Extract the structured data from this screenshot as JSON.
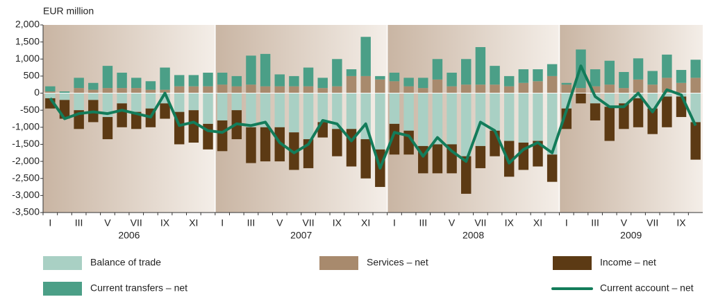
{
  "chart_data": {
    "type": "bar",
    "y_axis_label": "EUR million",
    "categories": [
      "I",
      null,
      "III",
      null,
      "V",
      null,
      "VII",
      null,
      "IX",
      null,
      "XI",
      null,
      "I",
      null,
      "III",
      null,
      "V",
      null,
      "VII",
      null,
      "IX",
      null,
      "XI",
      null,
      "I",
      null,
      "III",
      null,
      "V",
      null,
      "VII",
      null,
      "IX",
      null,
      "XI",
      null,
      "I",
      null,
      "III",
      null,
      "V",
      null,
      "VII",
      null,
      "IX",
      null
    ],
    "years": [
      "2006",
      "2007",
      "2008",
      "2009"
    ],
    "ylim": [
      -3500,
      2000
    ],
    "yticks": [
      {
        "value": 2000,
        "label": "2,000"
      },
      {
        "value": 1500,
        "label": "1,500"
      },
      {
        "value": 1000,
        "label": "1,000"
      },
      500,
      0,
      -500,
      {
        "value": -1000,
        "label": "-1,000"
      },
      {
        "value": -1500,
        "label": "-1,500"
      },
      {
        "value": -2000,
        "label": "-2,000"
      },
      {
        "value": -2500,
        "label": "-2,500"
      },
      {
        "value": -3000,
        "label": "-3,000"
      },
      {
        "value": -3500,
        "label": "-3,500"
      }
    ],
    "series": [
      {
        "name": "Balance of trade",
        "color": "#a9d0c4",
        "values": [
          -150,
          -200,
          -500,
          -200,
          -700,
          -300,
          -550,
          -450,
          -300,
          -550,
          -500,
          -900,
          -800,
          -500,
          -1000,
          -1000,
          -1000,
          -1150,
          -1350,
          -850,
          -1050,
          -1050,
          -1350,
          -1650,
          -900,
          -1100,
          -1550,
          -1500,
          -1500,
          -1850,
          -1550,
          -1100,
          -1400,
          -1450,
          -1400,
          -1800,
          -450,
          0,
          -300,
          -400,
          -300,
          -150,
          -450,
          -100,
          -100,
          -850
        ]
      },
      {
        "name": "Services – net",
        "color": "#a88a6d",
        "values": [
          50,
          0,
          150,
          100,
          150,
          150,
          150,
          100,
          100,
          200,
          200,
          200,
          250,
          200,
          250,
          200,
          200,
          200,
          200,
          150,
          200,
          500,
          500,
          400,
          350,
          200,
          150,
          400,
          200,
          250,
          250,
          250,
          200,
          300,
          350,
          500,
          250,
          150,
          200,
          250,
          150,
          400,
          250,
          450,
          300,
          450
        ]
      },
      {
        "name": "Income – net",
        "color": "#5c3a14",
        "values": [
          -300,
          -550,
          -550,
          -650,
          -650,
          -700,
          -500,
          -550,
          -450,
          -950,
          -950,
          -750,
          -900,
          -850,
          -1050,
          -1000,
          -1000,
          -1100,
          -850,
          -450,
          -800,
          -1100,
          -1150,
          -1100,
          -900,
          -700,
          -800,
          -850,
          -850,
          -1100,
          -650,
          -750,
          -1050,
          -800,
          -750,
          -800,
          -600,
          -300,
          -500,
          -1000,
          -750,
          -850,
          -750,
          -900,
          -600,
          -1100
        ]
      },
      {
        "name": "Current transfers – net",
        "color": "#4b9f87",
        "values": [
          150,
          50,
          300,
          200,
          650,
          450,
          300,
          250,
          650,
          330,
          330,
          400,
          350,
          300,
          850,
          950,
          350,
          300,
          550,
          300,
          800,
          200,
          1150,
          100,
          250,
          250,
          300,
          600,
          400,
          750,
          1100,
          550,
          300,
          400,
          350,
          350,
          50,
          1130,
          500,
          700,
          470,
          620,
          400,
          680,
          380,
          530
        ]
      },
      {
        "name": "Current account – net",
        "color": "#137c5a",
        "line": true,
        "values": [
          -150,
          -750,
          -600,
          -550,
          -600,
          -500,
          -600,
          -700,
          0,
          -950,
          -850,
          -1100,
          -1150,
          -900,
          -950,
          -850,
          -1450,
          -1750,
          -1500,
          -800,
          -900,
          -1400,
          -900,
          -2200,
          -1150,
          -1250,
          -1850,
          -1300,
          -1700,
          -2000,
          -850,
          -1100,
          -2050,
          -1650,
          -1450,
          -1750,
          -500,
          800,
          -100,
          -400,
          -400,
          0,
          -550,
          100,
          -50,
          -950
        ]
      }
    ]
  }
}
